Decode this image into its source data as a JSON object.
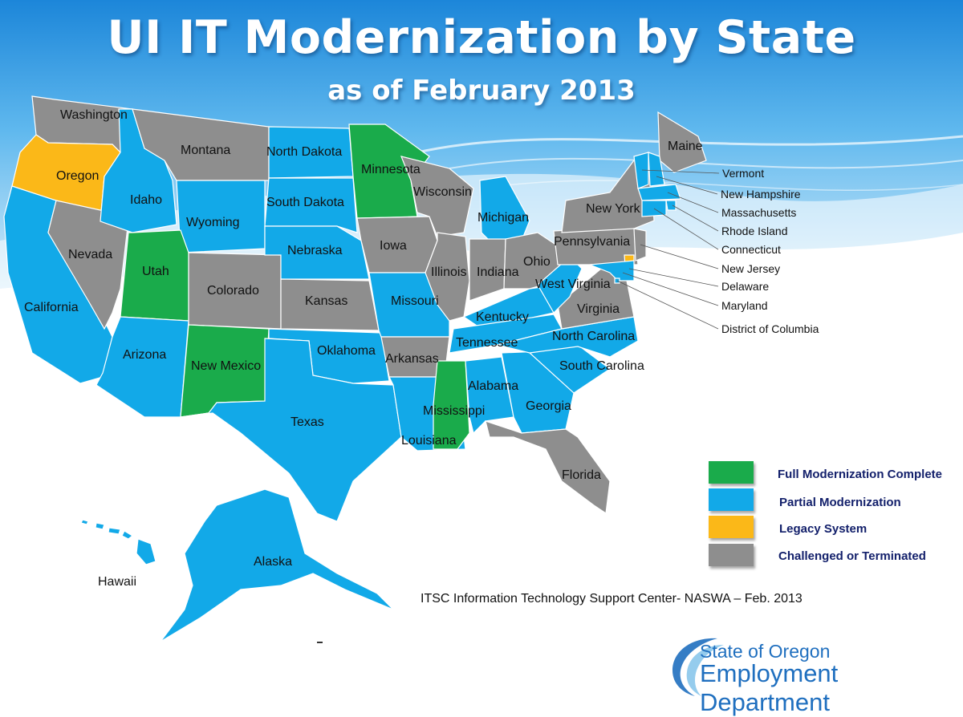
{
  "title": "UI IT Modernization by State",
  "subtitle": "as of February 2013",
  "colors": {
    "full": "#1aab4b",
    "partial": "#12a9e8",
    "legacy": "#fbb818",
    "challenged": "#8e8e8e",
    "sky_top": "#1c86d9",
    "logo": "#1f6fbf"
  },
  "legend": [
    {
      "category": "full",
      "label": "Full Modernization Complete"
    },
    {
      "category": "partial",
      "label": "Partial Modernization"
    },
    {
      "category": "legacy",
      "label": "Legacy System"
    },
    {
      "category": "challenged",
      "label": "Challenged or Terminated"
    }
  ],
  "states": [
    {
      "name": "Washington",
      "status": "challenged"
    },
    {
      "name": "Oregon",
      "status": "legacy"
    },
    {
      "name": "California",
      "status": "partial"
    },
    {
      "name": "Nevada",
      "status": "challenged"
    },
    {
      "name": "Idaho",
      "status": "partial"
    },
    {
      "name": "Montana",
      "status": "challenged"
    },
    {
      "name": "Wyoming",
      "status": "partial"
    },
    {
      "name": "Utah",
      "status": "full"
    },
    {
      "name": "Arizona",
      "status": "partial"
    },
    {
      "name": "Colorado",
      "status": "challenged"
    },
    {
      "name": "New Mexico",
      "status": "full"
    },
    {
      "name": "North Dakota",
      "status": "partial"
    },
    {
      "name": "South Dakota",
      "status": "partial"
    },
    {
      "name": "Nebraska",
      "status": "partial"
    },
    {
      "name": "Kansas",
      "status": "challenged"
    },
    {
      "name": "Oklahoma",
      "status": "partial"
    },
    {
      "name": "Texas",
      "status": "partial"
    },
    {
      "name": "Minnesota",
      "status": "full"
    },
    {
      "name": "Iowa",
      "status": "challenged"
    },
    {
      "name": "Missouri",
      "status": "partial"
    },
    {
      "name": "Arkansas",
      "status": "challenged"
    },
    {
      "name": "Louisiana",
      "status": "partial"
    },
    {
      "name": "Wisconsin",
      "status": "challenged"
    },
    {
      "name": "Illinois",
      "status": "challenged"
    },
    {
      "name": "Michigan",
      "status": "partial"
    },
    {
      "name": "Indiana",
      "status": "challenged"
    },
    {
      "name": "Ohio",
      "status": "challenged"
    },
    {
      "name": "Kentucky",
      "status": "partial"
    },
    {
      "name": "Tennessee",
      "status": "partial"
    },
    {
      "name": "Mississippi",
      "status": "full"
    },
    {
      "name": "Alabama",
      "status": "partial"
    },
    {
      "name": "Georgia",
      "status": "partial"
    },
    {
      "name": "Florida",
      "status": "challenged"
    },
    {
      "name": "South Carolina",
      "status": "partial"
    },
    {
      "name": "North Carolina",
      "status": "partial"
    },
    {
      "name": "Virginia",
      "status": "challenged"
    },
    {
      "name": "West Virginia",
      "status": "partial"
    },
    {
      "name": "Pennsylvania",
      "status": "challenged"
    },
    {
      "name": "New York",
      "status": "challenged"
    },
    {
      "name": "Maine",
      "status": "challenged"
    },
    {
      "name": "Vermont",
      "status": "partial"
    },
    {
      "name": "New Hampshire",
      "status": "partial"
    },
    {
      "name": "Massachusetts",
      "status": "partial"
    },
    {
      "name": "Rhode Island",
      "status": "partial"
    },
    {
      "name": "Connecticut",
      "status": "partial"
    },
    {
      "name": "New Jersey",
      "status": "challenged"
    },
    {
      "name": "Delaware",
      "status": "legacy"
    },
    {
      "name": "Maryland",
      "status": "partial"
    },
    {
      "name": "District of Columbia",
      "status": "partial"
    },
    {
      "name": "Alaska",
      "status": "partial"
    },
    {
      "name": "Hawaii",
      "status": "partial"
    }
  ],
  "source_note": "ITSC Information Technology Support Center- NASWA – Feb. 2013",
  "logo": {
    "line1": "State of Oregon",
    "line2": "Employment Department"
  }
}
